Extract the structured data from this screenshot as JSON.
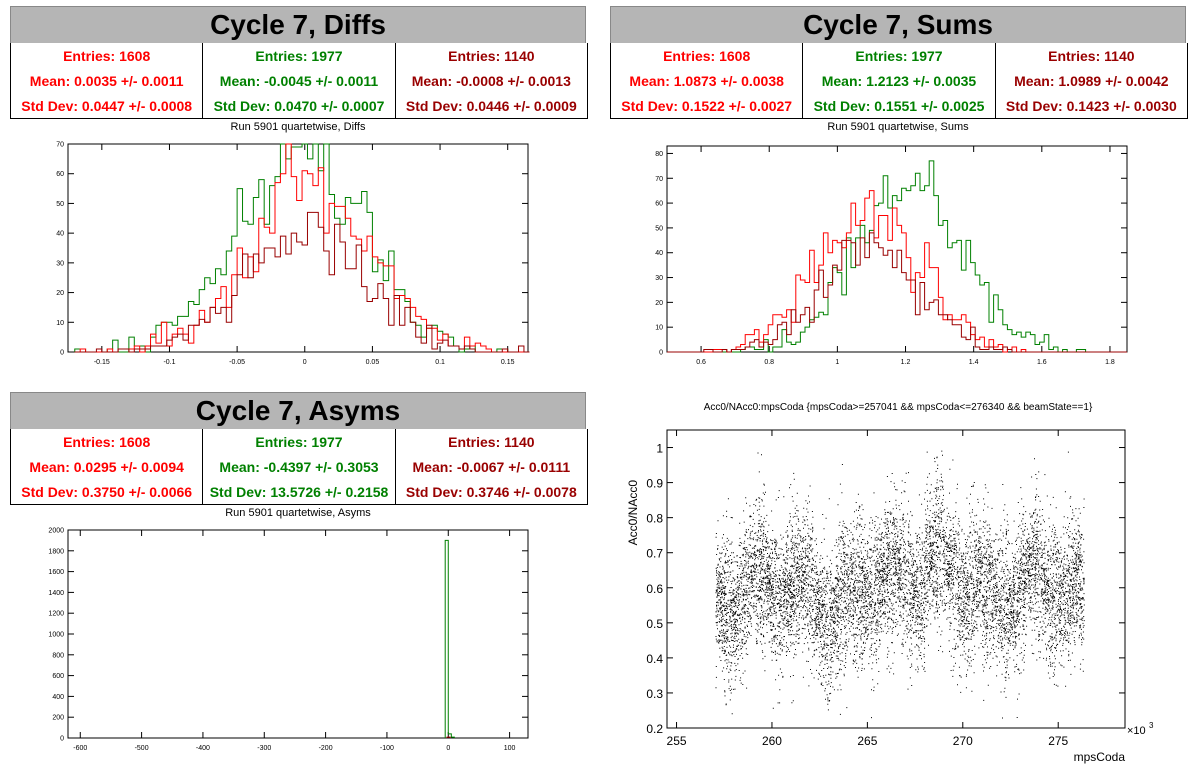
{
  "colors": {
    "red": "#ff0000",
    "green": "#008000",
    "darkred": "#990000",
    "black": "#000000"
  },
  "panels": {
    "diffs": {
      "title": "Cycle 7, Diffs",
      "subtitle": "Run 5901 quartetwise, Diffs",
      "stats": [
        {
          "color": "#ff0000",
          "entries": "Entries: 1608",
          "mean": "Mean: 0.0035 +/- 0.0011",
          "std": "Std Dev: 0.0447 +/- 0.0008"
        },
        {
          "color": "#008000",
          "entries": "Entries: 1977",
          "mean": "Mean: -0.0045 +/- 0.0011",
          "std": "Std Dev: 0.0470 +/- 0.0007"
        },
        {
          "color": "#990000",
          "entries": "Entries: 1140",
          "mean": "Mean: -0.0008 +/- 0.0013",
          "std": "Std Dev: 0.0446 +/- 0.0009"
        }
      ]
    },
    "sums": {
      "title": "Cycle 7, Sums",
      "subtitle": "Run 5901 quartetwise, Sums",
      "stats": [
        {
          "color": "#ff0000",
          "entries": "Entries: 1608",
          "mean": "Mean: 1.0873 +/- 0.0038",
          "std": "Std Dev: 0.1522 +/- 0.0027"
        },
        {
          "color": "#008000",
          "entries": "Entries: 1977",
          "mean": "Mean: 1.2123 +/- 0.0035",
          "std": "Std Dev: 0.1551 +/- 0.0025"
        },
        {
          "color": "#990000",
          "entries": "Entries: 1140",
          "mean": "Mean: 1.0989 +/- 0.0042",
          "std": "Std Dev: 0.1423 +/- 0.0030"
        }
      ]
    },
    "asyms": {
      "title": "Cycle 7, Asyms",
      "subtitle": "Run 5901 quartetwise, Asyms",
      "stats": [
        {
          "color": "#ff0000",
          "entries": "Entries: 1608",
          "mean": "Mean: 0.0295 +/- 0.0094",
          "std": "Std Dev: 0.3750 +/- 0.0066"
        },
        {
          "color": "#008000",
          "entries": "Entries: 1977",
          "mean": "Mean: -0.4397 +/- 0.3053",
          "std": "Std Dev: 13.5726 +/- 0.2158"
        },
        {
          "color": "#990000",
          "entries": "Entries: 1140",
          "mean": "Mean: -0.0067 +/- 0.0111",
          "std": "Std Dev: 0.3746 +/- 0.0078"
        }
      ]
    },
    "scatter": {
      "title": "Acc0/NAcc0:mpsCoda {mpsCoda>=257041 && mpsCoda<=276340 && beamState==1}"
    }
  },
  "chart_data": [
    {
      "id": "diffs",
      "type": "histogram",
      "xlim": [
        -0.175,
        0.165
      ],
      "ylim": [
        0,
        70
      ],
      "xticks": [
        -0.15,
        -0.1,
        -0.05,
        0,
        0.05,
        0.1,
        0.15
      ],
      "xtick_labels": [
        "-0.15",
        "-0.1",
        "-0.05",
        "0",
        "0.05",
        "0.1",
        "0.15"
      ],
      "yticks": [
        0,
        10,
        20,
        30,
        40,
        50,
        60,
        70
      ],
      "ytick_labels": [
        "0",
        "10",
        "20",
        "30",
        "40",
        "50",
        "60",
        "70"
      ],
      "bin_start": -0.17,
      "bin_width": 0.004,
      "series": [
        {
          "color": "#008000",
          "mean": -0.0045,
          "sd": 0.047,
          "n": 1977
        },
        {
          "color": "#ff0000",
          "mean": 0.0035,
          "sd": 0.0447,
          "n": 1608
        },
        {
          "color": "#990000",
          "mean": -0.0008,
          "sd": 0.0446,
          "n": 1140
        }
      ]
    },
    {
      "id": "sums",
      "type": "histogram",
      "xlim": [
        0.5,
        1.85
      ],
      "ylim": [
        0,
        83
      ],
      "xticks": [
        0.6,
        0.8,
        1,
        1.2,
        1.4,
        1.6,
        1.8
      ],
      "xtick_labels": [
        "0.6",
        "0.8",
        "1",
        "1.2",
        "1.4",
        "1.6",
        "1.8"
      ],
      "yticks": [
        0,
        10,
        20,
        30,
        40,
        50,
        60,
        70,
        80
      ],
      "ytick_labels": [
        "0",
        "10",
        "20",
        "30",
        "40",
        "50",
        "60",
        "70",
        "80"
      ],
      "bin_start": 0.5,
      "bin_width": 0.0135,
      "series": [
        {
          "color": "#008000",
          "mean": 1.2123,
          "sd": 0.1551,
          "n": 1977
        },
        {
          "color": "#ff0000",
          "mean": 1.0873,
          "sd": 0.1522,
          "n": 1608
        },
        {
          "color": "#990000",
          "mean": 1.0989,
          "sd": 0.1423,
          "n": 1140
        }
      ]
    },
    {
      "id": "asyms",
      "type": "histogram",
      "xlim": [
        -620,
        130
      ],
      "ylim": [
        0,
        2000
      ],
      "xticks": [
        -600,
        -500,
        -400,
        -300,
        -200,
        -100,
        0,
        100
      ],
      "xtick_labels": [
        "-600",
        "-500",
        "-400",
        "-300",
        "-200",
        "-100",
        "0",
        "100"
      ],
      "yticks": [
        0,
        200,
        400,
        600,
        800,
        1000,
        1200,
        1400,
        1600,
        1800,
        2000
      ],
      "ytick_labels": [
        "0",
        "200",
        "400",
        "600",
        "800",
        "1000",
        "1200",
        "1400",
        "1600",
        "1800",
        "2000"
      ],
      "bins": [
        {
          "x0": -5,
          "x1": 0,
          "value": 1900
        },
        {
          "x0": 0,
          "x1": 5,
          "value": 40
        },
        {
          "x0": 5,
          "x1": 10,
          "value": 8
        }
      ]
    },
    {
      "id": "scatter",
      "type": "scatter",
      "xlabel": "mpsCoda",
      "ylabel": "Acc0/NAcc0",
      "x_exponent": "×10",
      "x_exponent_power": "3",
      "xlim": [
        254.5,
        278.5
      ],
      "ylim": [
        0.2,
        1.05
      ],
      "xticks": [
        255,
        260,
        265,
        270,
        275
      ],
      "xtick_labels": [
        "255",
        "260",
        "265",
        "270",
        "275"
      ],
      "yticks": [
        0.2,
        0.3,
        0.4,
        0.5,
        0.6,
        0.7,
        0.8,
        0.9,
        1
      ],
      "ytick_labels": [
        "0.2",
        "0.3",
        "0.4",
        "0.5",
        "0.6",
        "0.7",
        "0.8",
        "0.9",
        "1"
      ],
      "x_range": [
        257.041,
        276.34
      ],
      "y_center": 0.58,
      "y_spread": 0.12
    }
  ]
}
